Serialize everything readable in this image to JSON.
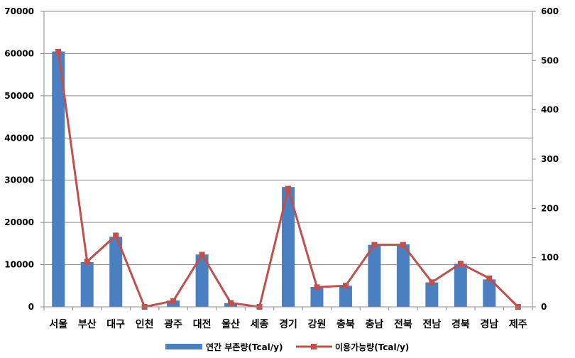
{
  "chart_data": {
    "type": "bar",
    "categories": [
      "서울",
      "부산",
      "대구",
      "인천",
      "광주",
      "대전",
      "울산",
      "세종",
      "경기",
      "강원",
      "충북",
      "충남",
      "전북",
      "전남",
      "경북",
      "경남",
      "제주"
    ],
    "series": [
      {
        "name": "연간 부존량(Tcal/y)",
        "type": "bar",
        "axis": "left",
        "color": "#4a7fc1",
        "values": [
          60500,
          10600,
          16600,
          0,
          1500,
          12400,
          900,
          0,
          28400,
          4700,
          5000,
          14700,
          14800,
          5800,
          10200,
          6500,
          0
        ]
      },
      {
        "name": "이용가능량(Tcal/y)",
        "type": "line",
        "axis": "right",
        "color": "#c0504d",
        "values": [
          518,
          92,
          145,
          0,
          12,
          106,
          8,
          0,
          240,
          40,
          43,
          126,
          126,
          50,
          88,
          58,
          0
        ]
      }
    ],
    "y_left": {
      "min": 0,
      "max": 70000,
      "ticks": [
        "0",
        "10000",
        "20000",
        "30000",
        "40000",
        "50000",
        "60000",
        "70000"
      ]
    },
    "y_right": {
      "min": 0,
      "max": 600,
      "ticks": [
        "0",
        "100",
        "200",
        "300",
        "400",
        "500",
        "600"
      ]
    },
    "grid": true,
    "legend": "bottom"
  }
}
